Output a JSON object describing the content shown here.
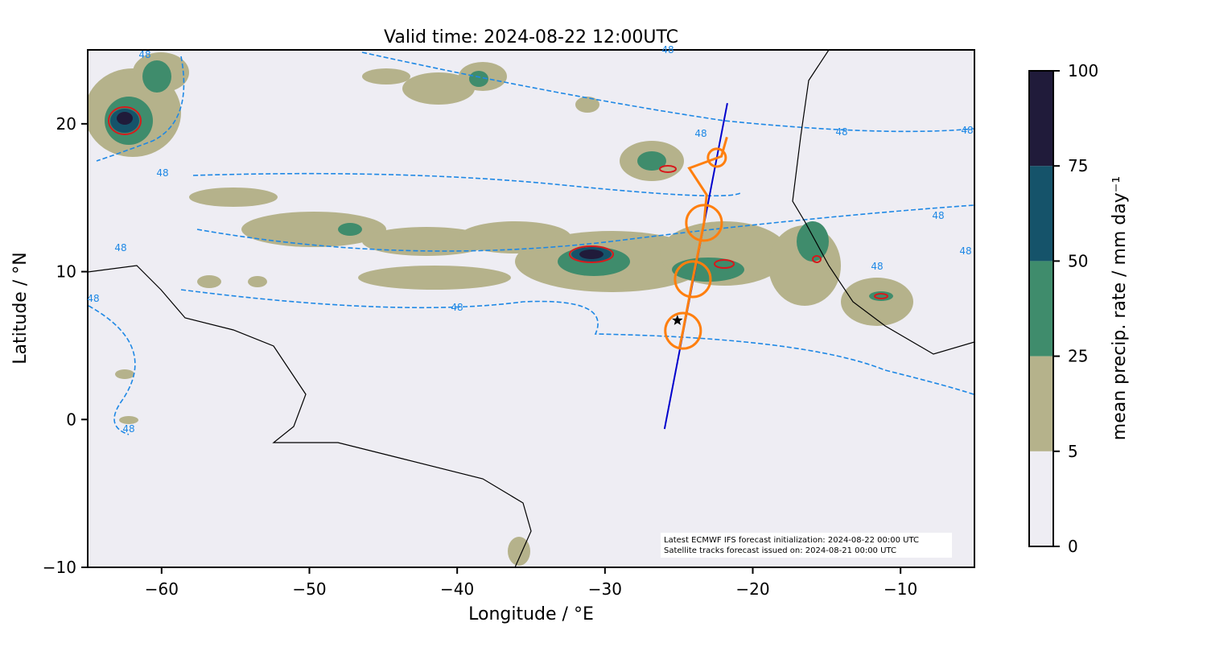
{
  "chart_data": {
    "type": "map",
    "title": "Valid time: 2024-08-22 12:00UTC",
    "x_label": "Longitude / °E",
    "y_label": "Latitude / °N",
    "xlim": [
      -65,
      -5
    ],
    "ylim": [
      -10,
      25
    ],
    "xticks": [
      {
        "value": -60,
        "label": "−60"
      },
      {
        "value": -50,
        "label": "−50"
      },
      {
        "value": -40,
        "label": "−40"
      },
      {
        "value": -30,
        "label": "−30"
      },
      {
        "value": -20,
        "label": "−20"
      },
      {
        "value": -10,
        "label": "−10"
      }
    ],
    "yticks": [
      {
        "value": -10,
        "label": "−10"
      },
      0,
      10,
      20
    ],
    "colorbar": {
      "label": "mean precip. rate / mm day⁻¹",
      "levels": [
        0,
        5,
        25,
        50,
        75,
        100
      ],
      "colors": [
        "#eeedf3",
        "#b5b28b",
        "#3f8c6c",
        "#15536a",
        "#201b3a"
      ]
    },
    "contour_label": "48",
    "satellite_track": {
      "color": "#0000cc",
      "lon": [
        -25.97,
        -21.72
      ],
      "lat": [
        -0.64,
        21.4
      ]
    },
    "orange_track": {
      "color": "#ff7f0e",
      "lon": [
        -24.95,
        -24.72,
        -24.06,
        -23.3,
        -23.12,
        -24.3,
        -22.12,
        -21.75
      ],
      "lat": [
        4.9,
        6.0,
        9.49,
        13.3,
        15.2,
        17.0,
        17.8,
        19.1
      ]
    },
    "circles": {
      "color": "#ff7f0e",
      "lon": [
        -24.72,
        -24.06,
        -23.3,
        -22.43
      ],
      "lat": [
        6.0,
        9.49,
        13.3,
        17.71
      ],
      "radius": [
        1.2,
        1.2,
        1.2,
        0.6
      ]
    },
    "marker": {
      "lon": -25.1,
      "lat": 6.7
    },
    "annotation": [
      "Latest ECMWF IFS forecast initialization: 2024-08-22 00:00 UTC",
      "Satellite tracks forecast issued on: 2024-08-21 00:00 UTC"
    ]
  }
}
